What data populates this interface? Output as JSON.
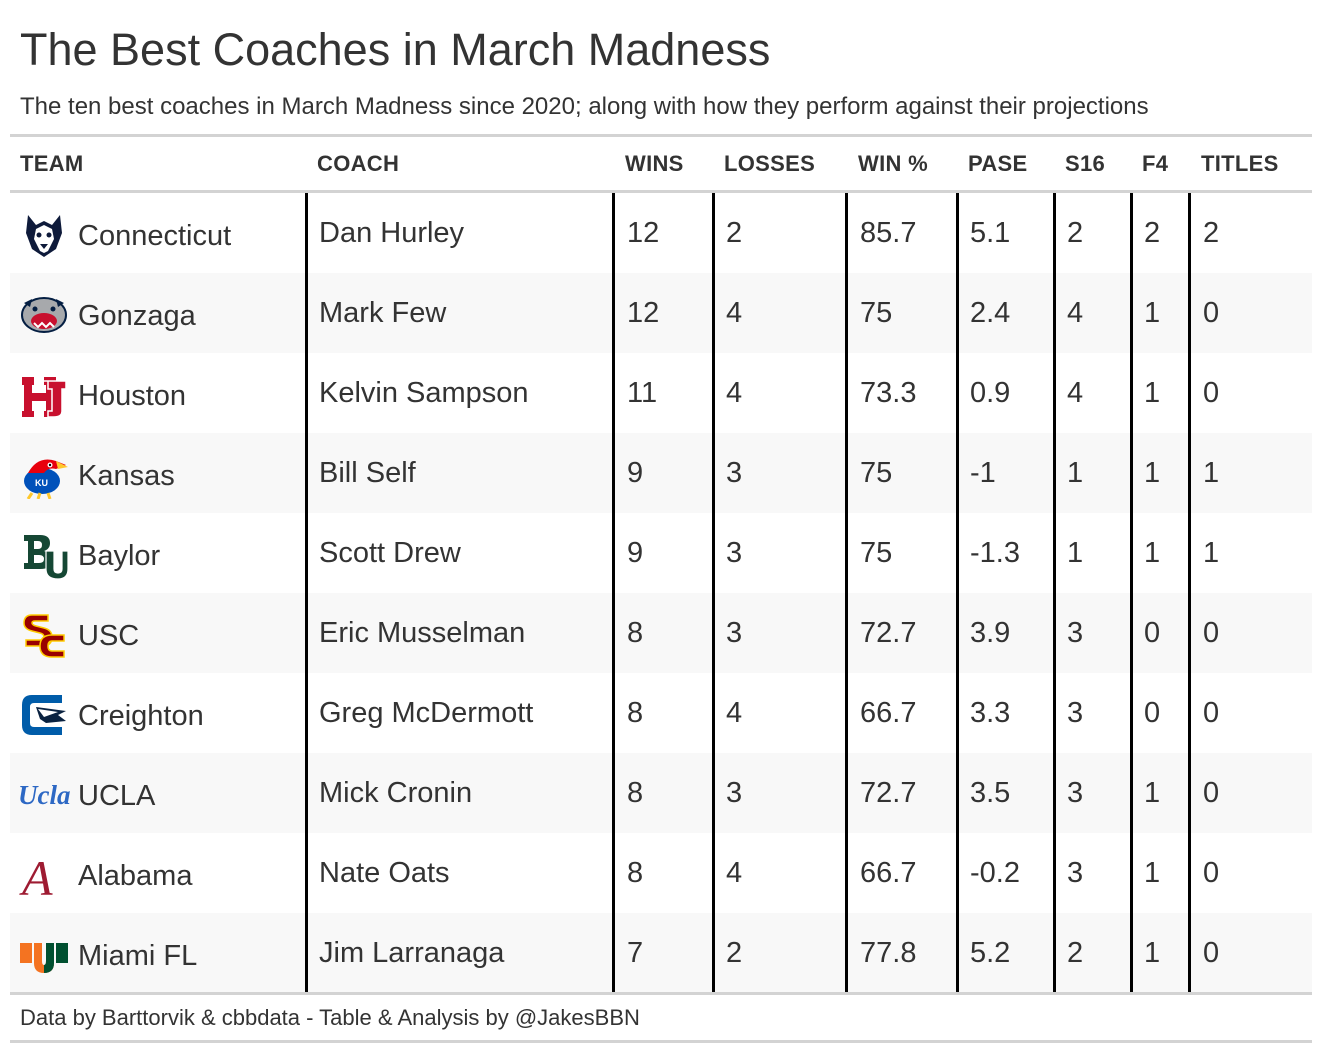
{
  "title": "The Best Coaches in March Madness",
  "subtitle": "The ten best coaches in March Madness since 2020; along with how they perform against their projections",
  "columns": {
    "team": "TEAM",
    "coach": "COACH",
    "wins": "WINS",
    "losses": "LOSSES",
    "win_pct": "WIN %",
    "pase": "PASE",
    "s16": "S16",
    "f4": "F4",
    "titles": "TITLES"
  },
  "rows": [
    {
      "team": "Connecticut",
      "logo": "uconn-husky-logo",
      "coach": "Dan Hurley",
      "wins": "12",
      "losses": "2",
      "win_pct": "85.7",
      "pase": "5.1",
      "s16": "2",
      "f4": "2",
      "titles": "2"
    },
    {
      "team": "Gonzaga",
      "logo": "gonzaga-bulldog-logo",
      "coach": "Mark Few",
      "wins": "12",
      "losses": "4",
      "win_pct": "75",
      "pase": "2.4",
      "s16": "4",
      "f4": "1",
      "titles": "0"
    },
    {
      "team": "Houston",
      "logo": "houston-uh-logo",
      "coach": "Kelvin Sampson",
      "wins": "11",
      "losses": "4",
      "win_pct": "73.3",
      "pase": "0.9",
      "s16": "4",
      "f4": "1",
      "titles": "0"
    },
    {
      "team": "Kansas",
      "logo": "kansas-jayhawk-logo",
      "coach": "Bill Self",
      "wins": "9",
      "losses": "3",
      "win_pct": "75",
      "pase": "-1",
      "s16": "1",
      "f4": "1",
      "titles": "1"
    },
    {
      "team": "Baylor",
      "logo": "baylor-bu-logo",
      "coach": "Scott Drew",
      "wins": "9",
      "losses": "3",
      "win_pct": "75",
      "pase": "-1.3",
      "s16": "1",
      "f4": "1",
      "titles": "1"
    },
    {
      "team": "USC",
      "logo": "usc-sc-logo",
      "coach": "Eric Musselman",
      "wins": "8",
      "losses": "3",
      "win_pct": "72.7",
      "pase": "3.9",
      "s16": "3",
      "f4": "0",
      "titles": "0"
    },
    {
      "team": "Creighton",
      "logo": "creighton-bluejay-logo",
      "coach": "Greg McDermott",
      "wins": "8",
      "losses": "4",
      "win_pct": "66.7",
      "pase": "3.3",
      "s16": "3",
      "f4": "0",
      "titles": "0"
    },
    {
      "team": "UCLA",
      "logo": "ucla-script-logo",
      "logo_text": "Ucla",
      "coach": "Mick Cronin",
      "wins": "8",
      "losses": "3",
      "win_pct": "72.7",
      "pase": "3.5",
      "s16": "3",
      "f4": "1",
      "titles": "0"
    },
    {
      "team": "Alabama",
      "logo": "alabama-script-a-logo",
      "logo_text": "A",
      "coach": "Nate Oats",
      "wins": "8",
      "losses": "4",
      "win_pct": "66.7",
      "pase": "-0.2",
      "s16": "3",
      "f4": "1",
      "titles": "0"
    },
    {
      "team": "Miami FL",
      "logo": "miami-u-logo",
      "coach": "Jim Larranaga",
      "wins": "7",
      "losses": "2",
      "win_pct": "77.8",
      "pase": "5.2",
      "s16": "2",
      "f4": "1",
      "titles": "0"
    }
  ],
  "source": "Data by Barttorvik & cbbdata - Table & Analysis by @JakesBBN",
  "colors": {
    "text": "#333333",
    "row_alt": "#f8f8f8",
    "rule": "#d3d3d3",
    "divider": "#000000"
  }
}
